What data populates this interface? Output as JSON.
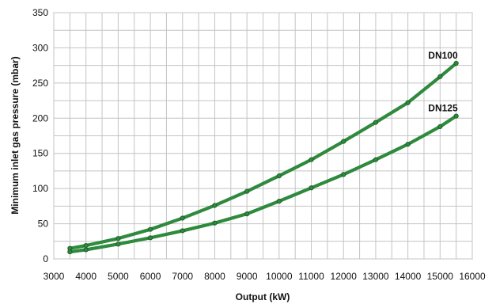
{
  "chart_data": {
    "type": "line",
    "xlabel": "Output (kW)",
    "ylabel": "Minimum inlet gas pressure (mbar)",
    "xlim": [
      3000,
      16000
    ],
    "ylim": [
      0,
      350
    ],
    "x_ticks": [
      3000,
      4000,
      5000,
      6000,
      7000,
      8000,
      9000,
      10000,
      11000,
      12000,
      13000,
      14000,
      15000,
      16000
    ],
    "y_ticks": [
      0,
      50,
      100,
      150,
      200,
      250,
      300,
      350
    ],
    "x_minor_step": 500,
    "y_minor_step": 25,
    "grid": true,
    "line_color": "#2e8b3d",
    "line_outline_color": "#1d5e28",
    "series": [
      {
        "name": "DN100",
        "x": [
          3500,
          4000,
          5000,
          6000,
          7000,
          8000,
          9000,
          10000,
          11000,
          12000,
          13000,
          14000,
          15000,
          15500
        ],
        "y": [
          15,
          19,
          29,
          42,
          58,
          76,
          96,
          118,
          141,
          167,
          194,
          222,
          259,
          278
        ]
      },
      {
        "name": "DN125",
        "x": [
          3500,
          4000,
          5000,
          6000,
          7000,
          8000,
          9000,
          10000,
          11000,
          12000,
          13000,
          14000,
          15000,
          15500
        ],
        "y": [
          10,
          13,
          21,
          30,
          40,
          51,
          64,
          82,
          101,
          120,
          141,
          163,
          188,
          203
        ]
      }
    ]
  }
}
